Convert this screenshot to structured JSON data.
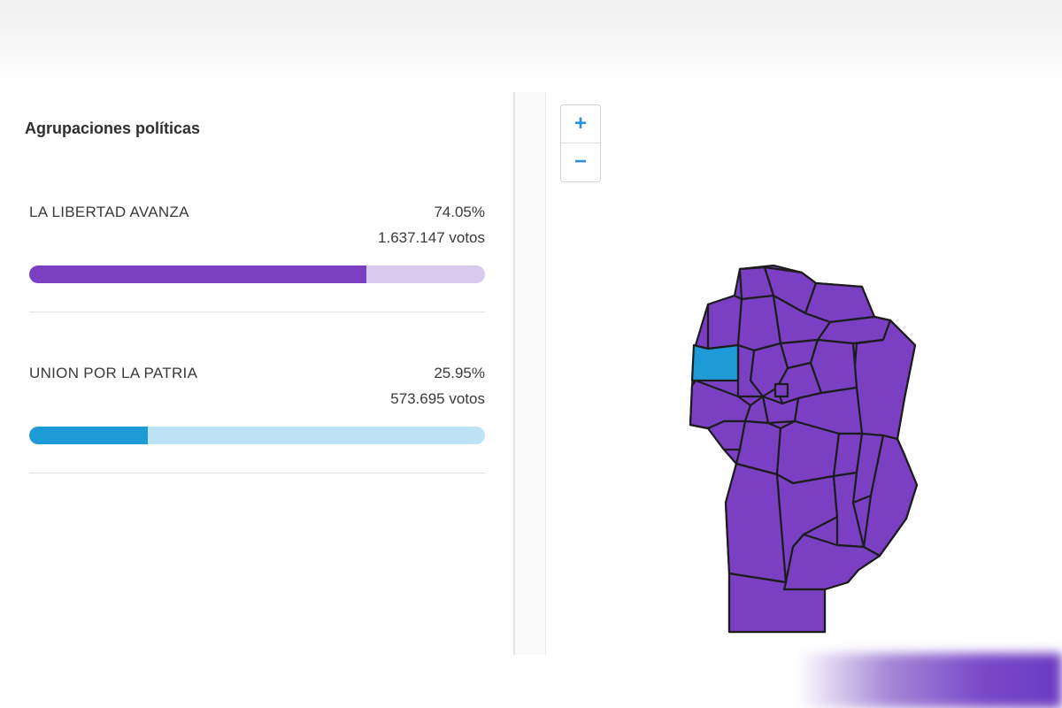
{
  "panel": {
    "title": "Agrupaciones políticas"
  },
  "parties": [
    {
      "name": "LA LIBERTAD AVANZA",
      "percent_label": "74.05%",
      "percent": 74.05,
      "votes_label": "1.637.147 votos",
      "color": "#7b3fc4",
      "track_color": "#d9c9ef"
    },
    {
      "name": "UNION POR LA PATRIA",
      "percent_label": "25.95%",
      "percent": 25.95,
      "votes_label": "573.695 votos",
      "color": "#1e9ad6",
      "track_color": "#bfe3f6"
    }
  ],
  "map": {
    "zoom_in_label": "+",
    "zoom_out_label": "−",
    "region_colors": {
      "libertad": "#7b3fc4",
      "union": "#1e9ad6",
      "border": "#1c1c1c"
    }
  }
}
